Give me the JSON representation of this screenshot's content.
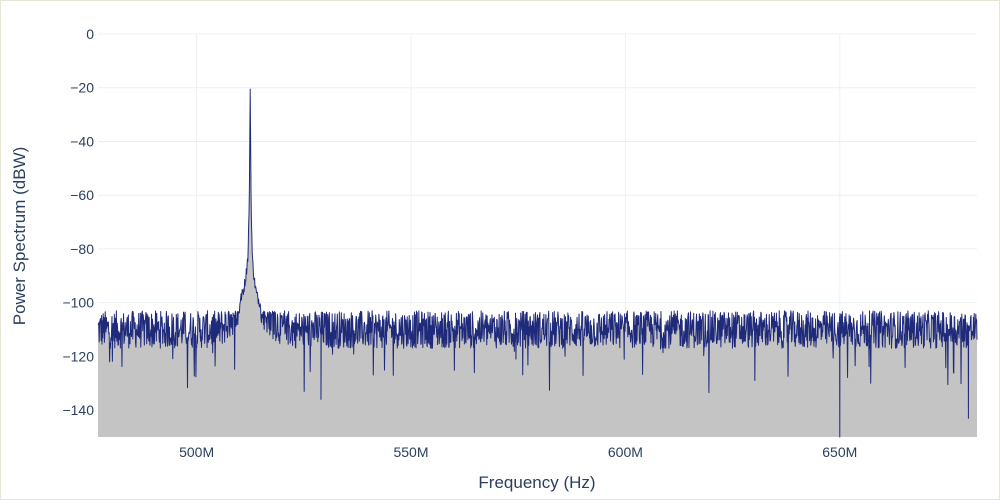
{
  "chart_data": {
    "type": "area",
    "title": "",
    "xlabel": "Frequency (Hz)",
    "ylabel": "Power Spectrum (dBW)",
    "xlim": [
      477000000,
      682000000
    ],
    "ylim": [
      -150,
      0
    ],
    "x_ticks": [
      {
        "value": 500000000,
        "label": "500M"
      },
      {
        "value": 550000000,
        "label": "550M"
      },
      {
        "value": 600000000,
        "label": "600M"
      },
      {
        "value": 650000000,
        "label": "650M"
      }
    ],
    "y_ticks": [
      {
        "value": 0,
        "label": "0"
      },
      {
        "value": -20,
        "label": "−20"
      },
      {
        "value": -40,
        "label": "−40"
      },
      {
        "value": -60,
        "label": "−60"
      },
      {
        "value": -80,
        "label": "−80"
      },
      {
        "value": -100,
        "label": "−100"
      },
      {
        "value": -120,
        "label": "−120"
      },
      {
        "value": -140,
        "label": "−140"
      }
    ],
    "grid": true,
    "series": [
      {
        "line_color": "#1f2a7a",
        "fill_color": "#c4c4c4",
        "noise_floor_mean": -112,
        "noise_floor_min": -150,
        "noise_floor_max": -103,
        "peak": {
          "x": 512500000,
          "y": -20.5
        },
        "secondary_peak": {
          "x": 512500000,
          "y": -60
        },
        "x": [
          477000000,
          480000000,
          485000000,
          490000000,
          495000000,
          500000000,
          503000000,
          505000000,
          507000000,
          509000000,
          510000000,
          511000000,
          511500000,
          512000000,
          512300000,
          512500000,
          512700000,
          513000000,
          513500000,
          514000000,
          515000000,
          516000000,
          518000000,
          520000000,
          523000000,
          525000000,
          529000000,
          530000000,
          535000000,
          540000000,
          545000000,
          550000000,
          555000000,
          560000000,
          565000000,
          570000000,
          575000000,
          580000000,
          585000000,
          590000000,
          595000000,
          600000000,
          605000000,
          610000000,
          615000000,
          620000000,
          625000000,
          630000000,
          635000000,
          640000000,
          645000000,
          650000000,
          655000000,
          660000000,
          665000000,
          670000000,
          675000000,
          680000000,
          682000000
        ],
        "y": [
          -112,
          -110,
          -113,
          -111,
          -114,
          -112,
          -113,
          -110,
          -108,
          -104,
          -100,
          -95,
          -90,
          -82,
          -60,
          -20.5,
          -62,
          -84,
          -92,
          -97,
          -101,
          -104,
          -107,
          -109,
          -110,
          -111,
          -136,
          -112,
          -113,
          -111,
          -112,
          -113,
          -112,
          -114,
          -111,
          -113,
          -112,
          -110,
          -113,
          -112,
          -114,
          -112,
          -111,
          -113,
          -112,
          -110,
          -113,
          -112,
          -111,
          -114,
          -112,
          -150,
          -113,
          -111,
          -112,
          -110,
          -113,
          -112,
          -111
        ]
      }
    ]
  }
}
